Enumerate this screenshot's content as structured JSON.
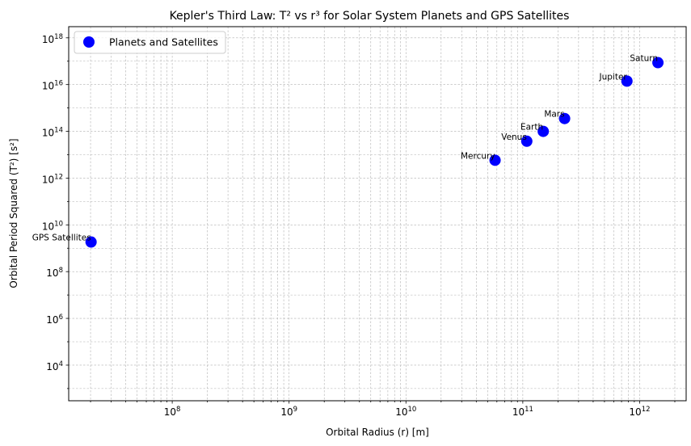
{
  "chart_data": {
    "type": "scatter",
    "title": "Kepler's Third Law: T² vs r³ for Solar System Planets and GPS Satellites",
    "xlabel": "Orbital Radius (r) [m]",
    "ylabel": "Orbital Period Squared (T²) [s²]",
    "xscale": "log",
    "yscale": "log",
    "xlim": [
      13000000,
      2500000000000
    ],
    "ylim": [
      300,
      3e+18
    ],
    "grid": true,
    "legend_position": "top-left",
    "series": [
      {
        "name": "Planets and Satellites",
        "color": "#0000ff",
        "points": [
          {
            "label": "GPS Satellites",
            "x": 20200000,
            "y": 1850000000
          },
          {
            "label": "Mercury",
            "x": 57900000000,
            "y": 5800000000000
          },
          {
            "label": "Venus",
            "x": 108200000000,
            "y": 37800000000000
          },
          {
            "label": "Earth",
            "x": 149600000000,
            "y": 99600000000000
          },
          {
            "label": "Mars",
            "x": 227900000000,
            "y": 353000000000000
          },
          {
            "label": "Jupiter",
            "x": 778500000000,
            "y": 14100000000000000
          },
          {
            "label": "Saturn",
            "x": 1433500000000,
            "y": 86800000000000000
          }
        ]
      }
    ],
    "x_ticks": [
      {
        "exp": 8,
        "base": "10",
        "sup": "8"
      },
      {
        "exp": 9,
        "base": "10",
        "sup": "9"
      },
      {
        "exp": 10,
        "base": "10",
        "sup": "10"
      },
      {
        "exp": 11,
        "base": "10",
        "sup": "11"
      },
      {
        "exp": 12,
        "base": "10",
        "sup": "12"
      }
    ],
    "y_ticks": [
      {
        "exp": 4,
        "base": "10",
        "sup": "4"
      },
      {
        "exp": 6,
        "base": "10",
        "sup": "6"
      },
      {
        "exp": 8,
        "base": "10",
        "sup": "8"
      },
      {
        "exp": 10,
        "base": "10",
        "sup": "10"
      },
      {
        "exp": 12,
        "base": "10",
        "sup": "12"
      },
      {
        "exp": 14,
        "base": "10",
        "sup": "14"
      },
      {
        "exp": 16,
        "base": "10",
        "sup": "16"
      },
      {
        "exp": 18,
        "base": "10",
        "sup": "18"
      }
    ]
  }
}
